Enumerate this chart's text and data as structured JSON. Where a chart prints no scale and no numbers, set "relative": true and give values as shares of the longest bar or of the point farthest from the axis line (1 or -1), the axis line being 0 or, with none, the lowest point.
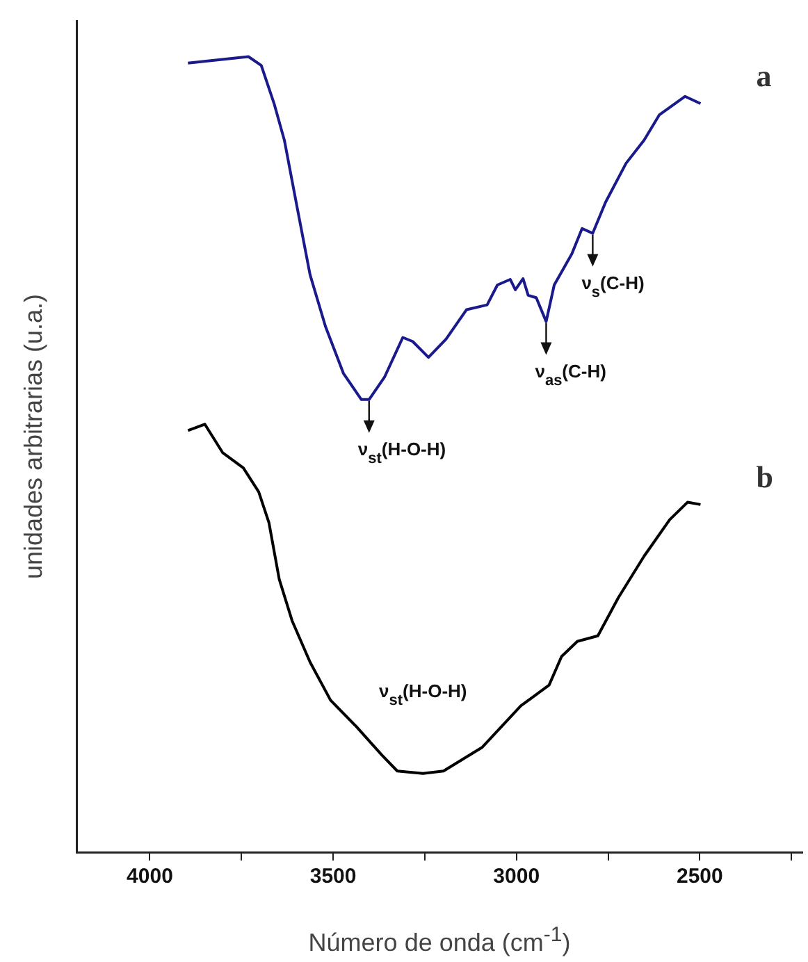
{
  "chart_data": {
    "type": "line",
    "xlabel": "Número de onda (cm$^{-1}$)",
    "ylabel": "unidades arbitrarias (u.a.)",
    "relative": true,
    "xlim": [
      4200,
      2220
    ],
    "xticks": [
      4000,
      {
        "value": 3750,
        "label": null
      },
      3500,
      {
        "value": 3250,
        "label": null
      },
      3000,
      {
        "value": 2750,
        "label": null
      },
      2500,
      {
        "value": 2250,
        "label": null
      }
    ],
    "grid": false,
    "legend": false,
    "marker": "none",
    "line_style": "solid",
    "series": [
      {
        "name": "a",
        "color": "#1a1a8c",
        "x": [
          3896,
          3731,
          3696,
          3661,
          3633,
          3598,
          3563,
          3521,
          3472,
          3423,
          3402,
          3360,
          3310,
          3283,
          3240,
          3192,
          3136,
          3080,
          3052,
          3017,
          3003,
          2982,
          2968,
          2946,
          2919,
          2897,
          2849,
          2821,
          2792,
          2757,
          2701,
          2652,
          2610,
          2540,
          2498
        ],
        "values": [
          0.992,
          1.0,
          0.989,
          0.941,
          0.895,
          0.81,
          0.726,
          0.661,
          0.602,
          0.569,
          0.569,
          0.597,
          0.647,
          0.642,
          0.622,
          0.645,
          0.682,
          0.688,
          0.713,
          0.72,
          0.707,
          0.721,
          0.7,
          0.697,
          0.667,
          0.713,
          0.752,
          0.784,
          0.778,
          0.817,
          0.866,
          0.895,
          0.927,
          0.95,
          0.941
        ]
      },
      {
        "name": "b",
        "color": "#000000",
        "x": [
          3896,
          3850,
          3801,
          3745,
          3703,
          3675,
          3647,
          3612,
          3563,
          3507,
          3437,
          3367,
          3325,
          3255,
          3199,
          3093,
          2988,
          2911,
          2877,
          2834,
          2778,
          2722,
          2652,
          2582,
          2533,
          2498
        ],
        "values": [
          0.53,
          0.538,
          0.502,
          0.483,
          0.453,
          0.414,
          0.343,
          0.291,
          0.239,
          0.191,
          0.158,
          0.122,
          0.102,
          0.099,
          0.102,
          0.132,
          0.184,
          0.21,
          0.246,
          0.265,
          0.272,
          0.32,
          0.372,
          0.418,
          0.44,
          0.437
        ]
      }
    ],
    "annotations": [
      {
        "text": "ν$_{st}$(H-O-H)",
        "x": 3402,
        "y": 0.569
      },
      {
        "text": "ν$_{as}$(C-H)",
        "x": 2919,
        "y": 0.667
      },
      {
        "text": "ν$_{s}$(C-H)",
        "x": 2792,
        "y": 0.778
      },
      "ν$_{st}$(H-O-H)"
    ]
  }
}
